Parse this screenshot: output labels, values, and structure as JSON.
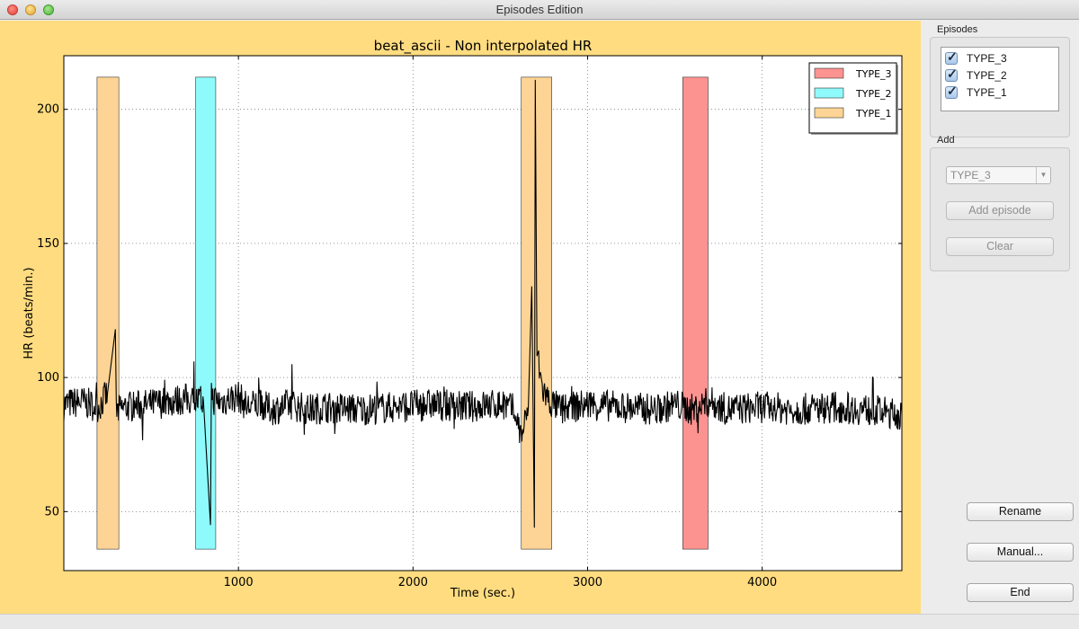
{
  "window": {
    "title": "Episodes Edition"
  },
  "episodes_panel": {
    "label": "Episodes",
    "items": [
      {
        "label": "TYPE_3",
        "checked": true
      },
      {
        "label": "TYPE_2",
        "checked": true
      },
      {
        "label": "TYPE_1",
        "checked": true
      }
    ]
  },
  "add_panel": {
    "label": "Add",
    "type_select_value": "TYPE_3",
    "add_episode_label": "Add episode",
    "clear_label": "Clear"
  },
  "buttons": {
    "rename_label": "Rename",
    "manual_label": "Manual...",
    "end_label": "End"
  },
  "colors": {
    "panel_background": "#ffdc80",
    "TYPE_1": "#fdd495",
    "TYPE_2": "#8ffafb",
    "TYPE_3": "#fc9391",
    "signal": "#000000"
  },
  "chart_data": {
    "type": "line",
    "title": "beat_ascii - Non interpolated HR",
    "xlabel": "Time (sec.)",
    "ylabel": "HR (beats/min.)",
    "xlim": [
      0,
      4800
    ],
    "ylim": [
      28,
      220
    ],
    "xticks": [
      1000,
      2000,
      3000,
      4000
    ],
    "yticks": [
      50,
      100,
      150,
      200
    ],
    "grid": true,
    "legend_position": "top-right",
    "legend": [
      {
        "name": "TYPE_3",
        "color": "#fc9391"
      },
      {
        "name": "TYPE_2",
        "color": "#8ffafb"
      },
      {
        "name": "TYPE_1",
        "color": "#fdd495"
      }
    ],
    "episodes": [
      {
        "type": "TYPE_1",
        "start": 190,
        "end": 315,
        "ymin": 36,
        "ymax": 212
      },
      {
        "type": "TYPE_2",
        "start": 755,
        "end": 870,
        "ymin": 36,
        "ymax": 212
      },
      {
        "type": "TYPE_1",
        "start": 2620,
        "end": 2795,
        "ymin": 36,
        "ymax": 212
      },
      {
        "type": "TYPE_3",
        "start": 3545,
        "end": 3690,
        "ymin": 36,
        "ymax": 212
      }
    ],
    "series": [
      {
        "x": [
          0,
          100,
          200,
          250,
          295,
          300,
          350,
          500,
          700,
          800,
          840,
          845,
          850,
          900,
          1000,
          1050,
          1100,
          1200,
          1300,
          1400,
          1500,
          1700,
          1900,
          2100,
          2300,
          2500,
          2580,
          2620,
          2660,
          2680,
          2695,
          2700,
          2710,
          2720,
          2740,
          2780,
          2850,
          3000,
          3200,
          3400,
          3500,
          3600,
          3700,
          3800,
          4000,
          4200,
          4400,
          4600,
          4800
        ],
        "y": [
          90,
          91,
          89,
          94,
          118,
          87,
          89,
          90,
          92,
          91,
          45,
          98,
          92,
          91,
          93,
          89,
          90,
          88,
          90,
          88,
          89,
          88,
          89,
          90,
          89,
          90,
          88,
          78,
          88,
          134,
          44,
          211,
          108,
          105,
          96,
          91,
          88,
          90,
          89,
          88,
          90,
          88,
          91,
          88,
          89,
          88,
          89,
          88,
          86
        ]
      }
    ]
  }
}
